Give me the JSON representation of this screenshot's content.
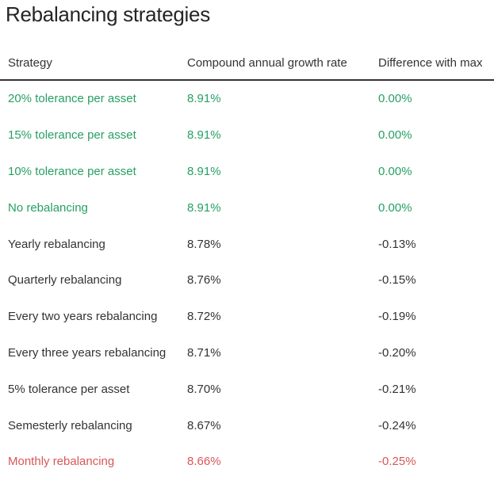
{
  "page": {
    "title": "Rebalancing strategies"
  },
  "colors": {
    "best": "#27a064",
    "worst": "#d95757",
    "neutral": "#333333",
    "header_border": "#333333",
    "background": "#ffffff"
  },
  "table": {
    "columns": {
      "strategy": "Strategy",
      "cagr": "Compound annual growth rate",
      "diff": "Difference with max"
    },
    "rows": [
      {
        "strategy": "20% tolerance per asset",
        "cagr": "8.91%",
        "diff": "0.00%",
        "status": "best"
      },
      {
        "strategy": "15% tolerance per asset",
        "cagr": "8.91%",
        "diff": "0.00%",
        "status": "best"
      },
      {
        "strategy": "10% tolerance per asset",
        "cagr": "8.91%",
        "diff": "0.00%",
        "status": "best"
      },
      {
        "strategy": "No rebalancing",
        "cagr": "8.91%",
        "diff": "0.00%",
        "status": "best"
      },
      {
        "strategy": "Yearly rebalancing",
        "cagr": "8.78%",
        "diff": "-0.13%",
        "status": "neutral"
      },
      {
        "strategy": "Quarterly rebalancing",
        "cagr": "8.76%",
        "diff": "-0.15%",
        "status": "neutral"
      },
      {
        "strategy": "Every two years rebalancing",
        "cagr": "8.72%",
        "diff": "-0.19%",
        "status": "neutral"
      },
      {
        "strategy": "Every three years rebalancing",
        "cagr": "8.71%",
        "diff": "-0.20%",
        "status": "neutral"
      },
      {
        "strategy": "5% tolerance per asset",
        "cagr": "8.70%",
        "diff": "-0.21%",
        "status": "neutral"
      },
      {
        "strategy": "Semesterly rebalancing",
        "cagr": "8.67%",
        "diff": "-0.24%",
        "status": "neutral"
      },
      {
        "strategy": "Monthly rebalancing",
        "cagr": "8.66%",
        "diff": "-0.25%",
        "status": "worst"
      }
    ]
  }
}
